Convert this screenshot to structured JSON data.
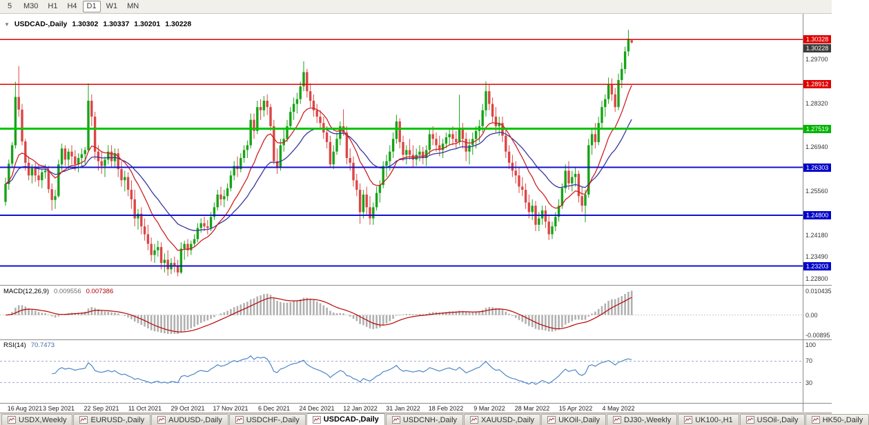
{
  "toolbar": {
    "timeframes": [
      "5",
      "M30",
      "H1",
      "H4",
      "D1",
      "W1",
      "MN"
    ],
    "active_timeframe": "D1"
  },
  "chart": {
    "collapse_icon": "▼",
    "symbol_label": "USDCAD-,Daily",
    "ohlc_display": {
      "open": "1.30302",
      "high": "1.30337",
      "low": "1.30201",
      "close": "1.30228"
    },
    "price_axis": {
      "gray_labels": [
        "1.29700",
        "1.28320",
        "1.26940",
        "1.25560",
        "1.24180",
        "1.23490",
        "1.22800"
      ],
      "badges": [
        {
          "value": "1.30328",
          "color": "#dd0000"
        },
        {
          "value": "1.30228",
          "color": "#3c3c3c"
        },
        {
          "value": "1.28912",
          "color": "#dd0000"
        },
        {
          "value": "1.27519",
          "color": "#00b400"
        },
        {
          "value": "1.26303",
          "color": "#0000c8"
        },
        {
          "value": "1.24800",
          "color": "#0000c8"
        },
        {
          "value": "1.23203",
          "color": "#0000c8"
        }
      ]
    },
    "levels": [
      {
        "price": 1.30328,
        "color": "#e00000",
        "width": 1.5
      },
      {
        "price": 1.28912,
        "color": "#e00000",
        "width": 1.5
      },
      {
        "price": 1.27519,
        "color": "#00c400",
        "width": 3
      },
      {
        "price": 1.26303,
        "color": "#1010cc",
        "width": 2
      },
      {
        "price": 1.248,
        "color": "#1010cc",
        "width": 2
      },
      {
        "price": 1.23203,
        "color": "#1010cc",
        "width": 2
      }
    ],
    "date_labels": [
      "16 Aug 2021",
      "3 Sep 2021",
      "22 Sep 2021",
      "11 Oct 2021",
      "29 Oct 2021",
      "17 Nov 2021",
      "6 Dec 2021",
      "24 Dec 2021",
      "12 Jan 2022",
      "31 Jan 2022",
      "18 Feb 2022",
      "9 Mar 2022",
      "28 Mar 2022",
      "15 Apr 2022",
      "4 May 2022"
    ]
  },
  "macd": {
    "name": "MACD(12,26,9)",
    "value_main": "0.009556",
    "value_signal": "0.007386",
    "axis_labels": [
      "0.010435",
      "0.00",
      "-0.00895"
    ]
  },
  "rsi": {
    "name": "RSI(14)",
    "value": "70.7473",
    "axis_labels": [
      "100",
      "70",
      "30"
    ],
    "levels": [
      70,
      30
    ]
  },
  "tabs": [
    {
      "label": "USDX,Weekly",
      "active": false
    },
    {
      "label": "EURUSD-,Daily",
      "active": false
    },
    {
      "label": "AUDUSD-,Daily",
      "active": false
    },
    {
      "label": "USDCHF-,Daily",
      "active": false
    },
    {
      "label": "USDCAD-,Daily",
      "active": true
    },
    {
      "label": "USDCNH-,Daily",
      "active": false
    },
    {
      "label": "XAUUSD-,Daily",
      "active": false
    },
    {
      "label": "UKOil-,Daily",
      "active": false
    },
    {
      "label": "DJ30-,Weekly",
      "active": false
    },
    {
      "label": "UK100-,H1",
      "active": false
    },
    {
      "label": "USOil-,Daily",
      "active": false
    },
    {
      "label": "HK50-,Daily",
      "active": false
    }
  ],
  "colors": {
    "candle_up": "#16a316",
    "candle_down": "#dc4545",
    "ma_fast": "#cc2020",
    "ma_slow": "#3535a0",
    "macd_hist": "#b0b0b0",
    "macd_signal": "#bb0000",
    "rsi_line": "#4d86c8",
    "rsi_level": "#9fa8d8"
  },
  "chart_data": {
    "type": "candlestick",
    "symbol": "USDCAD",
    "timeframe": "Daily",
    "price_range": {
      "min": 1.2263,
      "max": 1.3096
    },
    "x_tick_indices": [
      3,
      16,
      29,
      42,
      55,
      68,
      81,
      94,
      107,
      120,
      133,
      146,
      159,
      172,
      185
    ],
    "indicators": {
      "ma_fast": {
        "type": "EMA",
        "period": 12
      },
      "ma_slow": {
        "type": "EMA",
        "period": 26
      },
      "macd": [
        12,
        26,
        9
      ],
      "rsi": 14
    },
    "candles": [
      [
        1.2522,
        1.2598,
        1.251,
        1.2578
      ],
      [
        1.2578,
        1.2655,
        1.256,
        1.2642
      ],
      [
        1.2642,
        1.271,
        1.263,
        1.27
      ],
      [
        1.27,
        1.29,
        1.269,
        1.2852
      ],
      [
        1.2852,
        1.2949,
        1.279,
        1.2812
      ],
      [
        1.2812,
        1.283,
        1.27,
        1.2712
      ],
      [
        1.2712,
        1.272,
        1.262,
        1.2645
      ],
      [
        1.2645,
        1.2665,
        1.259,
        1.2605
      ],
      [
        1.2605,
        1.264,
        1.258,
        1.2628
      ],
      [
        1.2628,
        1.2645,
        1.2585,
        1.2605
      ],
      [
        1.2605,
        1.264,
        1.257,
        1.259
      ],
      [
        1.259,
        1.2625,
        1.2565,
        1.2615
      ],
      [
        1.2615,
        1.264,
        1.2595,
        1.262
      ],
      [
        1.262,
        1.2635,
        1.255,
        1.2562
      ],
      [
        1.2562,
        1.258,
        1.2495,
        1.2528
      ],
      [
        1.2528,
        1.256,
        1.25,
        1.254
      ],
      [
        1.254,
        1.2655,
        1.2535,
        1.264
      ],
      [
        1.264,
        1.2705,
        1.262,
        1.269
      ],
      [
        1.269,
        1.27,
        1.2635,
        1.2655
      ],
      [
        1.2655,
        1.269,
        1.2625,
        1.268
      ],
      [
        1.268,
        1.27,
        1.264,
        1.2665
      ],
      [
        1.2665,
        1.2685,
        1.262,
        1.264
      ],
      [
        1.264,
        1.2675,
        1.2615,
        1.266
      ],
      [
        1.266,
        1.269,
        1.263,
        1.2672
      ],
      [
        1.2672,
        1.2695,
        1.264,
        1.2685
      ],
      [
        1.2685,
        1.2895,
        1.268,
        1.284
      ],
      [
        1.284,
        1.286,
        1.276,
        1.279
      ],
      [
        1.279,
        1.2805,
        1.2655,
        1.268
      ],
      [
        1.268,
        1.27,
        1.262,
        1.265
      ],
      [
        1.265,
        1.268,
        1.261,
        1.2635
      ],
      [
        1.2635,
        1.2665,
        1.26,
        1.2655
      ],
      [
        1.2655,
        1.27,
        1.264,
        1.268
      ],
      [
        1.268,
        1.27,
        1.263,
        1.265
      ],
      [
        1.265,
        1.269,
        1.263,
        1.2675
      ],
      [
        1.2675,
        1.269,
        1.26,
        1.2625
      ],
      [
        1.2625,
        1.265,
        1.257,
        1.259
      ],
      [
        1.259,
        1.262,
        1.2555,
        1.26
      ],
      [
        1.26,
        1.2615,
        1.254,
        1.256
      ],
      [
        1.256,
        1.259,
        1.25,
        1.253
      ],
      [
        1.253,
        1.256,
        1.2445,
        1.247
      ],
      [
        1.247,
        1.25,
        1.2435,
        1.2485
      ],
      [
        1.2485,
        1.2505,
        1.242,
        1.2445
      ],
      [
        1.2445,
        1.247,
        1.24,
        1.242
      ],
      [
        1.242,
        1.245,
        1.237,
        1.239
      ],
      [
        1.239,
        1.241,
        1.2335,
        1.2355
      ],
      [
        1.2355,
        1.239,
        1.233,
        1.237
      ],
      [
        1.237,
        1.24,
        1.235,
        1.238
      ],
      [
        1.238,
        1.2395,
        1.231,
        1.233
      ],
      [
        1.233,
        1.236,
        1.23,
        1.234
      ],
      [
        1.234,
        1.237,
        1.229,
        1.231
      ],
      [
        1.231,
        1.2345,
        1.2295,
        1.233
      ],
      [
        1.233,
        1.235,
        1.23,
        1.232
      ],
      [
        1.232,
        1.234,
        1.2288,
        1.23
      ],
      [
        1.23,
        1.2395,
        1.2295,
        1.2375
      ],
      [
        1.2375,
        1.24,
        1.234,
        1.239
      ],
      [
        1.239,
        1.2405,
        1.235,
        1.237
      ],
      [
        1.237,
        1.24,
        1.2355,
        1.239
      ],
      [
        1.239,
        1.242,
        1.238,
        1.2405
      ],
      [
        1.2405,
        1.2455,
        1.2395,
        1.244
      ],
      [
        1.244,
        1.247,
        1.2425,
        1.2455
      ],
      [
        1.2455,
        1.2475,
        1.243,
        1.2445
      ],
      [
        1.2445,
        1.2465,
        1.242,
        1.244
      ],
      [
        1.244,
        1.249,
        1.243,
        1.2475
      ],
      [
        1.2475,
        1.252,
        1.2465,
        1.2505
      ],
      [
        1.2505,
        1.256,
        1.2495,
        1.2545
      ],
      [
        1.2545,
        1.257,
        1.251,
        1.253
      ],
      [
        1.253,
        1.256,
        1.2505,
        1.254
      ],
      [
        1.254,
        1.258,
        1.2525,
        1.2565
      ],
      [
        1.2565,
        1.262,
        1.2555,
        1.2605
      ],
      [
        1.2605,
        1.265,
        1.259,
        1.2635
      ],
      [
        1.2635,
        1.2665,
        1.26,
        1.2625
      ],
      [
        1.2625,
        1.2675,
        1.2615,
        1.266
      ],
      [
        1.266,
        1.27,
        1.2645,
        1.2685
      ],
      [
        1.2685,
        1.2715,
        1.266,
        1.27
      ],
      [
        1.27,
        1.28,
        1.269,
        1.278
      ],
      [
        1.278,
        1.28,
        1.272,
        1.2745
      ],
      [
        1.2745,
        1.284,
        1.2735,
        1.282
      ],
      [
        1.282,
        1.2845,
        1.278,
        1.281
      ],
      [
        1.281,
        1.2855,
        1.279,
        1.284
      ],
      [
        1.284,
        1.286,
        1.2795,
        1.282
      ],
      [
        1.282,
        1.283,
        1.2745,
        1.276
      ],
      [
        1.276,
        1.278,
        1.264,
        1.265
      ],
      [
        1.265,
        1.269,
        1.261,
        1.263
      ],
      [
        1.263,
        1.272,
        1.262,
        1.27
      ],
      [
        1.27,
        1.275,
        1.268,
        1.272
      ],
      [
        1.272,
        1.278,
        1.271,
        1.276
      ],
      [
        1.276,
        1.282,
        1.275,
        1.2805
      ],
      [
        1.2805,
        1.285,
        1.278,
        1.283
      ],
      [
        1.283,
        1.2865,
        1.28,
        1.2845
      ],
      [
        1.2845,
        1.29,
        1.283,
        1.2885
      ],
      [
        1.2885,
        1.2964,
        1.287,
        1.293
      ],
      [
        1.293,
        1.294,
        1.285,
        1.287
      ],
      [
        1.287,
        1.2895,
        1.282,
        1.284
      ],
      [
        1.284,
        1.286,
        1.279,
        1.281
      ],
      [
        1.281,
        1.283,
        1.277,
        1.279
      ],
      [
        1.279,
        1.281,
        1.275,
        1.277
      ],
      [
        1.277,
        1.279,
        1.272,
        1.274
      ],
      [
        1.274,
        1.276,
        1.269,
        1.271
      ],
      [
        1.271,
        1.273,
        1.263,
        1.264
      ],
      [
        1.264,
        1.27,
        1.2625,
        1.268
      ],
      [
        1.268,
        1.274,
        1.267,
        1.272
      ],
      [
        1.272,
        1.2775,
        1.27,
        1.276
      ],
      [
        1.276,
        1.2813,
        1.273,
        1.274
      ],
      [
        1.274,
        1.276,
        1.264,
        1.266
      ],
      [
        1.266,
        1.269,
        1.262,
        1.2645
      ],
      [
        1.2645,
        1.2665,
        1.257,
        1.259
      ],
      [
        1.259,
        1.261,
        1.254,
        1.256
      ],
      [
        1.256,
        1.258,
        1.2453,
        1.249
      ],
      [
        1.249,
        1.256,
        1.247,
        1.2545
      ],
      [
        1.2545,
        1.257,
        1.248,
        1.2505
      ],
      [
        1.2505,
        1.254,
        1.245,
        1.247
      ],
      [
        1.247,
        1.252,
        1.245,
        1.2505
      ],
      [
        1.2505,
        1.257,
        1.2495,
        1.255
      ],
      [
        1.255,
        1.259,
        1.252,
        1.2575
      ],
      [
        1.2575,
        1.265,
        1.2565,
        1.2635
      ],
      [
        1.2635,
        1.267,
        1.26,
        1.265
      ],
      [
        1.265,
        1.27,
        1.262,
        1.268
      ],
      [
        1.268,
        1.274,
        1.266,
        1.272
      ],
      [
        1.272,
        1.2796,
        1.2705,
        1.2775
      ],
      [
        1.2775,
        1.2785,
        1.269,
        1.271
      ],
      [
        1.271,
        1.273,
        1.265,
        1.267
      ],
      [
        1.267,
        1.27,
        1.264,
        1.2685
      ],
      [
        1.2685,
        1.272,
        1.2655,
        1.267
      ],
      [
        1.267,
        1.27,
        1.263,
        1.2655
      ],
      [
        1.2655,
        1.269,
        1.2635,
        1.267
      ],
      [
        1.267,
        1.27,
        1.265,
        1.268
      ],
      [
        1.268,
        1.2695,
        1.264,
        1.266
      ],
      [
        1.266,
        1.27,
        1.2635,
        1.2685
      ],
      [
        1.2685,
        1.275,
        1.267,
        1.2735
      ],
      [
        1.2735,
        1.276,
        1.27,
        1.272
      ],
      [
        1.272,
        1.274,
        1.268,
        1.27
      ],
      [
        1.27,
        1.273,
        1.2665,
        1.2685
      ],
      [
        1.2685,
        1.272,
        1.266,
        1.2705
      ],
      [
        1.2705,
        1.274,
        1.269,
        1.2725
      ],
      [
        1.2725,
        1.275,
        1.27,
        1.2735
      ],
      [
        1.2735,
        1.276,
        1.27,
        1.272
      ],
      [
        1.272,
        1.2745,
        1.269,
        1.271
      ],
      [
        1.271,
        1.2859,
        1.27,
        1.275
      ],
      [
        1.275,
        1.277,
        1.269,
        1.272
      ],
      [
        1.272,
        1.274,
        1.265,
        1.268
      ],
      [
        1.268,
        1.272,
        1.264,
        1.27
      ],
      [
        1.27,
        1.274,
        1.267,
        1.272
      ],
      [
        1.272,
        1.276,
        1.269,
        1.2745
      ],
      [
        1.2745,
        1.278,
        1.271,
        1.276
      ],
      [
        1.276,
        1.283,
        1.274,
        1.281
      ],
      [
        1.281,
        1.2901,
        1.279,
        1.287
      ],
      [
        1.287,
        1.289,
        1.281,
        1.283
      ],
      [
        1.283,
        1.285,
        1.277,
        1.279
      ],
      [
        1.279,
        1.282,
        1.274,
        1.276
      ],
      [
        1.276,
        1.279,
        1.273,
        1.277
      ],
      [
        1.277,
        1.279,
        1.271,
        1.273
      ],
      [
        1.273,
        1.275,
        1.266,
        1.268
      ],
      [
        1.268,
        1.27,
        1.2625,
        1.2645
      ],
      [
        1.2645,
        1.267,
        1.26,
        1.262
      ],
      [
        1.262,
        1.265,
        1.258,
        1.2605
      ],
      [
        1.2605,
        1.263,
        1.255,
        1.257
      ],
      [
        1.257,
        1.26,
        1.254,
        1.256
      ],
      [
        1.256,
        1.258,
        1.25,
        1.252
      ],
      [
        1.252,
        1.2545,
        1.247,
        1.249
      ],
      [
        1.249,
        1.253,
        1.2465,
        1.251
      ],
      [
        1.251,
        1.2525,
        1.243,
        1.245
      ],
      [
        1.245,
        1.249,
        1.243,
        1.247
      ],
      [
        1.247,
        1.251,
        1.245,
        1.2495
      ],
      [
        1.2495,
        1.251,
        1.244,
        1.246
      ],
      [
        1.246,
        1.248,
        1.2402,
        1.242
      ],
      [
        1.242,
        1.246,
        1.2405,
        1.2445
      ],
      [
        1.2445,
        1.249,
        1.243,
        1.2475
      ],
      [
        1.2475,
        1.253,
        1.246,
        1.251
      ],
      [
        1.251,
        1.258,
        1.25,
        1.2565
      ],
      [
        1.2565,
        1.264,
        1.255,
        1.262
      ],
      [
        1.262,
        1.265,
        1.256,
        1.258
      ],
      [
        1.258,
        1.262,
        1.2555,
        1.26
      ],
      [
        1.26,
        1.263,
        1.257,
        1.261
      ],
      [
        1.261,
        1.262,
        1.252,
        1.254
      ],
      [
        1.254,
        1.257,
        1.249,
        1.251
      ],
      [
        1.251,
        1.256,
        1.2458,
        1.2545
      ],
      [
        1.2545,
        1.272,
        1.2535,
        1.27
      ],
      [
        1.27,
        1.2755,
        1.267,
        1.2735
      ],
      [
        1.2735,
        1.277,
        1.269,
        1.271
      ],
      [
        1.271,
        1.279,
        1.27,
        1.277
      ],
      [
        1.277,
        1.284,
        1.275,
        1.282
      ],
      [
        1.282,
        1.286,
        1.279,
        1.2845
      ],
      [
        1.2845,
        1.2913,
        1.283,
        1.289
      ],
      [
        1.289,
        1.291,
        1.284,
        1.286
      ],
      [
        1.286,
        1.288,
        1.2805,
        1.282
      ],
      [
        1.282,
        1.2925,
        1.281,
        1.2905
      ],
      [
        1.2905,
        1.296,
        1.288,
        1.294
      ],
      [
        1.294,
        1.301,
        1.2925,
        1.2995
      ],
      [
        1.2995,
        1.3063,
        1.298,
        1.3035
      ],
      [
        1.30302,
        1.30337,
        1.30201,
        1.30228
      ]
    ]
  }
}
